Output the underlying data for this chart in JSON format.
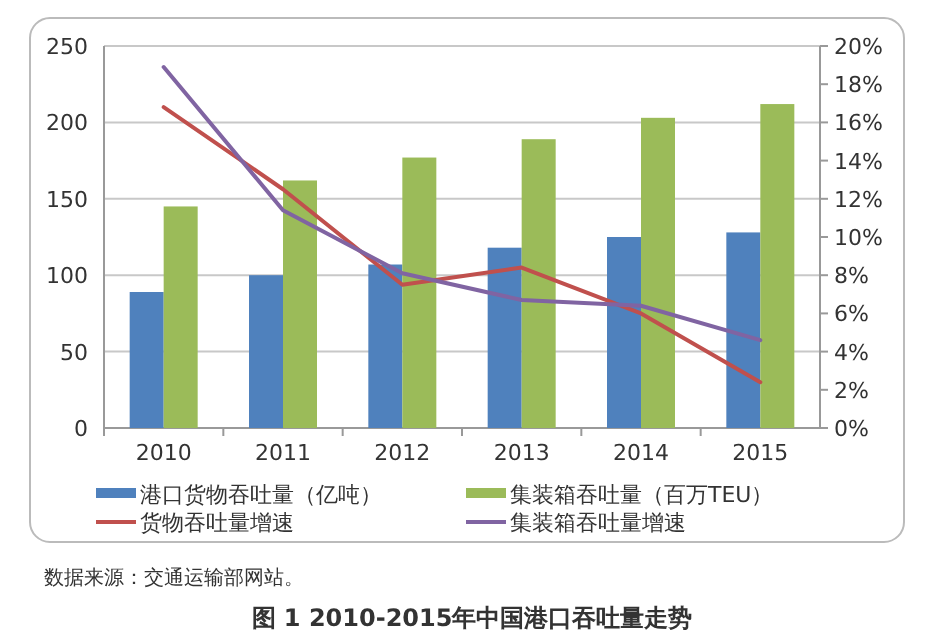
{
  "chart_data": {
    "type": "bar",
    "title": "图 1  2010-2015年中国港口吞吐量走势",
    "categories": [
      "2010",
      "2011",
      "2012",
      "2013",
      "2014",
      "2015"
    ],
    "series": [
      {
        "name": "港口货物吞吐量（亿吨）",
        "color": "#4f81bd",
        "values": [
          89,
          100,
          107,
          118,
          125,
          128
        ]
      },
      {
        "name": "集装箱吞吐量（百万TEU）",
        "color": "#9bbb59",
        "values": [
          145,
          162,
          177,
          189,
          203,
          212
        ]
      },
      {
        "name": "货物吞吐量增速",
        "type": "line",
        "axis": "y2",
        "color": "#c0504d",
        "values": [
          16.8,
          12.5,
          7.5,
          8.4,
          6.0,
          2.4
        ]
      },
      {
        "name": "集装箱吞吐量增速",
        "type": "line",
        "axis": "y2",
        "color": "#8064a2",
        "values": [
          18.9,
          11.4,
          8.1,
          6.7,
          6.4,
          4.6
        ]
      }
    ],
    "ylim": [
      0,
      250
    ],
    "yticks": [
      0,
      50,
      100,
      150,
      200,
      250
    ],
    "y2lim": [
      0,
      20
    ],
    "y2ticks": [
      {
        "value": 0,
        "label": "0%"
      },
      {
        "value": 2,
        "label": "2%"
      },
      {
        "value": 4,
        "label": "4%"
      },
      {
        "value": 6,
        "label": "6%"
      },
      {
        "value": 8,
        "label": "8%"
      },
      {
        "value": 10,
        "label": "10%"
      },
      {
        "value": 12,
        "label": "12%"
      },
      {
        "value": 14,
        "label": "14%"
      },
      {
        "value": 16,
        "label": "16%"
      },
      {
        "value": 18,
        "label": "18%"
      },
      {
        "value": 20,
        "label": "20%"
      }
    ],
    "grid": "y",
    "legend": "bottom",
    "annotations": [
      "数据来源：交通运输部网站。"
    ]
  }
}
